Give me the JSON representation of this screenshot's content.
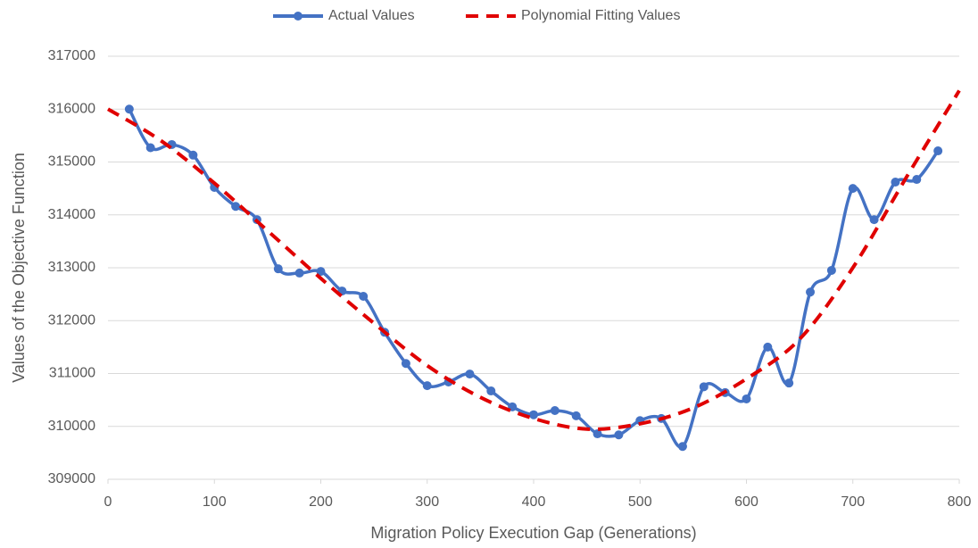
{
  "chart_data": {
    "type": "line",
    "xlabel": "Migration Policy Execution Gap (Generations)",
    "ylabel": "Values of the Objective Function",
    "series": [
      {
        "name": "Actual Values",
        "color": "#4472c4",
        "style": "solid",
        "markers": true,
        "x": [
          20,
          40,
          60,
          80,
          100,
          120,
          140,
          160,
          180,
          200,
          220,
          240,
          260,
          280,
          300,
          320,
          340,
          360,
          380,
          400,
          420,
          440,
          460,
          480,
          500,
          520,
          540,
          560,
          580,
          600,
          620,
          640,
          660,
          680,
          700,
          720,
          740,
          760,
          780
        ],
        "values": [
          316000,
          315270,
          315330,
          315130,
          314520,
          314160,
          313910,
          312980,
          312900,
          312930,
          312560,
          312460,
          311780,
          311190,
          310770,
          310840,
          310990,
          310670,
          310370,
          310220,
          310300,
          310200,
          309860,
          309840,
          310110,
          310150,
          309620,
          310750,
          310640,
          310520,
          311500,
          310820,
          312540,
          312950,
          314500,
          313910,
          314620,
          314670,
          315210
        ]
      },
      {
        "name": "Polynomial Fitting Values",
        "color": "#e00000",
        "style": "dashed",
        "markers": false,
        "x": [
          0,
          50,
          100,
          150,
          200,
          250,
          300,
          350,
          400,
          450,
          500,
          550,
          600,
          650,
          700,
          750,
          800
        ],
        "values": [
          316000,
          315400,
          314600,
          313700,
          312800,
          311950,
          311150,
          310550,
          310150,
          309950,
          310050,
          310350,
          310900,
          311650,
          313000,
          314700,
          316350
        ]
      }
    ],
    "xlim": [
      0,
      800
    ],
    "xticks": [
      0,
      100,
      200,
      300,
      400,
      500,
      600,
      700,
      800
    ],
    "ylim": [
      309000,
      317000
    ],
    "yticks": [
      309000,
      310000,
      311000,
      312000,
      313000,
      314000,
      315000,
      316000,
      317000
    ],
    "grid": true,
    "legend": "top"
  }
}
